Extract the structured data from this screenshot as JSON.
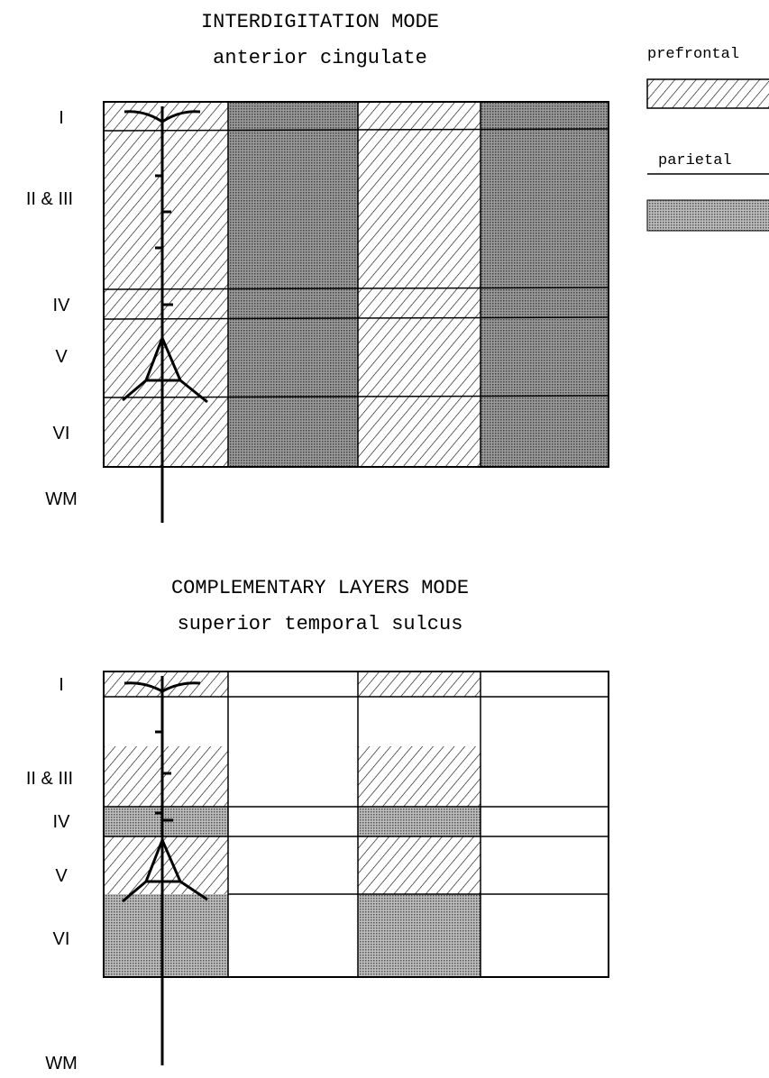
{
  "panels": [
    {
      "title": "INTERDIGITATION MODE",
      "subtitle": "anterior cingulate",
      "layers": [
        "I",
        "II & III",
        "IV",
        "V",
        "VI",
        "WM"
      ]
    },
    {
      "title": "COMPLEMENTARY LAYERS MODE",
      "subtitle": "superior temporal sulcus",
      "layers": [
        "I",
        "II & III",
        "IV",
        "V",
        "VI",
        "WM"
      ]
    }
  ],
  "legend": [
    {
      "label": "prefrontal"
    },
    {
      "label": "parietal"
    }
  ]
}
